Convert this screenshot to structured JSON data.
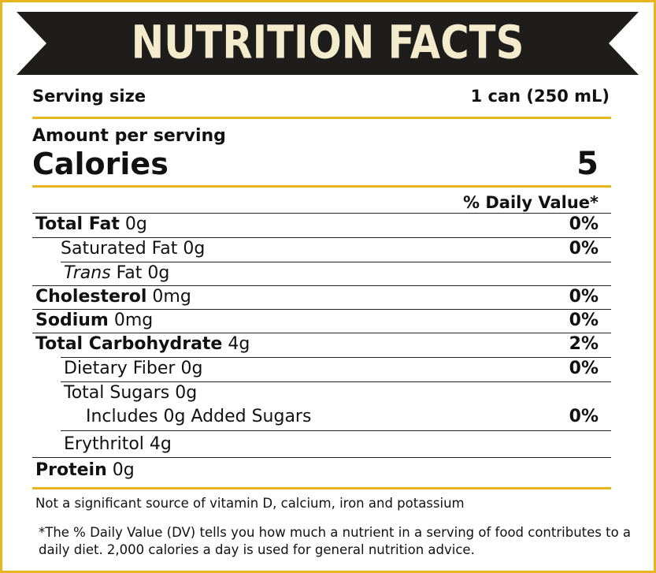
{
  "header": {
    "title": "NUTRITION FACTS"
  },
  "serving": {
    "label": "Serving size",
    "value": "1 can (250 mL)"
  },
  "calories": {
    "heading": "Amount per serving",
    "label": "Calories",
    "value": 5
  },
  "dv_header": "% Daily Value*",
  "rows": [
    {
      "name": "Total Fat",
      "amount": "0g",
      "dv": "0%"
    },
    {
      "name": "Saturated Fat",
      "amount": "0g",
      "dv": "0%"
    },
    {
      "name_italic": "Trans",
      "name": "Fat",
      "amount": "0g"
    },
    {
      "name": "Cholesterol",
      "amount": "0mg",
      "dv": "0%"
    },
    {
      "name": "Sodium",
      "amount": "0mg",
      "dv": "0%"
    },
    {
      "name": "Total Carbohydrate",
      "amount": "4g",
      "dv": "2%"
    },
    {
      "name": "Dietary Fiber",
      "amount": "0g",
      "dv": "0%"
    },
    {
      "name": "Total Sugars",
      "amount": "0g"
    },
    {
      "name": "Includes 0g Added Sugars",
      "dv": "0%"
    },
    {
      "name": "Erythritol",
      "amount": "4g"
    },
    {
      "name": "Protein",
      "amount": "0g"
    }
  ],
  "footnotes": [
    "Not a significant source of vitamin D, calcium, iron and potassium",
    "*The % Daily Value (DV) tells you how much a nutrient in a serving of food contributes to a daily diet. 2,000 calories a day is used for general nutrition advice."
  ]
}
